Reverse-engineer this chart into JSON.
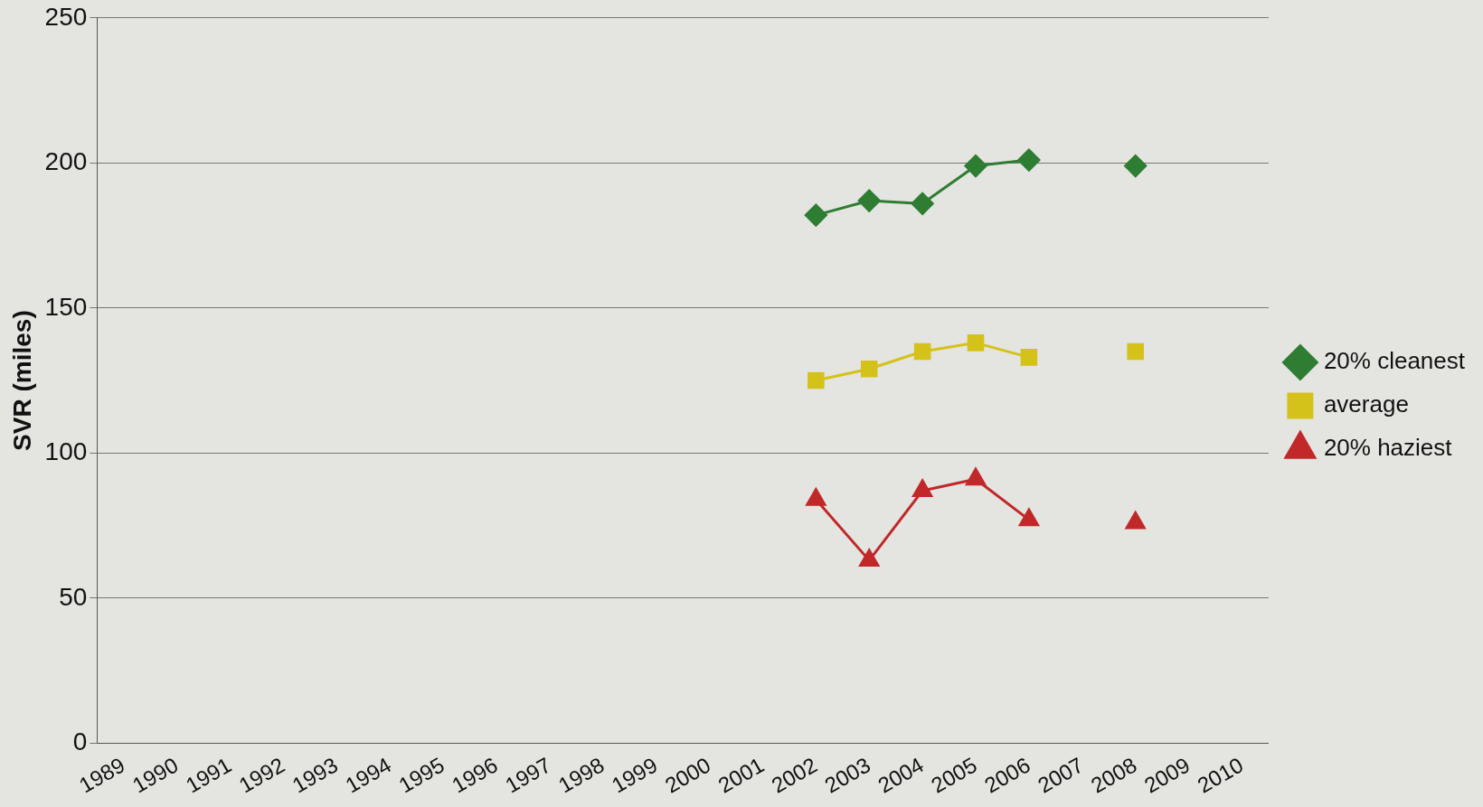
{
  "chart_data": {
    "type": "line",
    "ylabel": "SVR (miles)",
    "categories": [
      "1989",
      "1990",
      "1991",
      "1992",
      "1993",
      "1994",
      "1995",
      "1996",
      "1997",
      "1998",
      "1999",
      "2000",
      "2001",
      "2002",
      "2003",
      "2004",
      "2005",
      "2006",
      "2007",
      "2008",
      "2009",
      "2010"
    ],
    "series": [
      {
        "name": "20% cleanest",
        "color": "#2e7d32",
        "marker": "diamond",
        "values": [
          null,
          null,
          null,
          null,
          null,
          null,
          null,
          null,
          null,
          null,
          null,
          null,
          null,
          182,
          187,
          186,
          199,
          201,
          null,
          199,
          null,
          null
        ]
      },
      {
        "name": "average",
        "color": "#d4c21a",
        "marker": "square",
        "values": [
          null,
          null,
          null,
          null,
          null,
          null,
          null,
          null,
          null,
          null,
          null,
          null,
          null,
          125,
          129,
          135,
          138,
          133,
          null,
          135,
          null,
          null
        ]
      },
      {
        "name": "20% haziest",
        "color": "#c0282a",
        "marker": "triangle",
        "values": [
          null,
          null,
          null,
          null,
          null,
          null,
          null,
          null,
          null,
          null,
          null,
          null,
          null,
          84,
          63,
          87,
          91,
          77,
          null,
          76,
          null,
          null
        ]
      }
    ],
    "ylim": [
      0,
      250
    ],
    "yticks": [
      0,
      50,
      100,
      150,
      200,
      250
    ],
    "grid": "y",
    "legend": "right"
  }
}
